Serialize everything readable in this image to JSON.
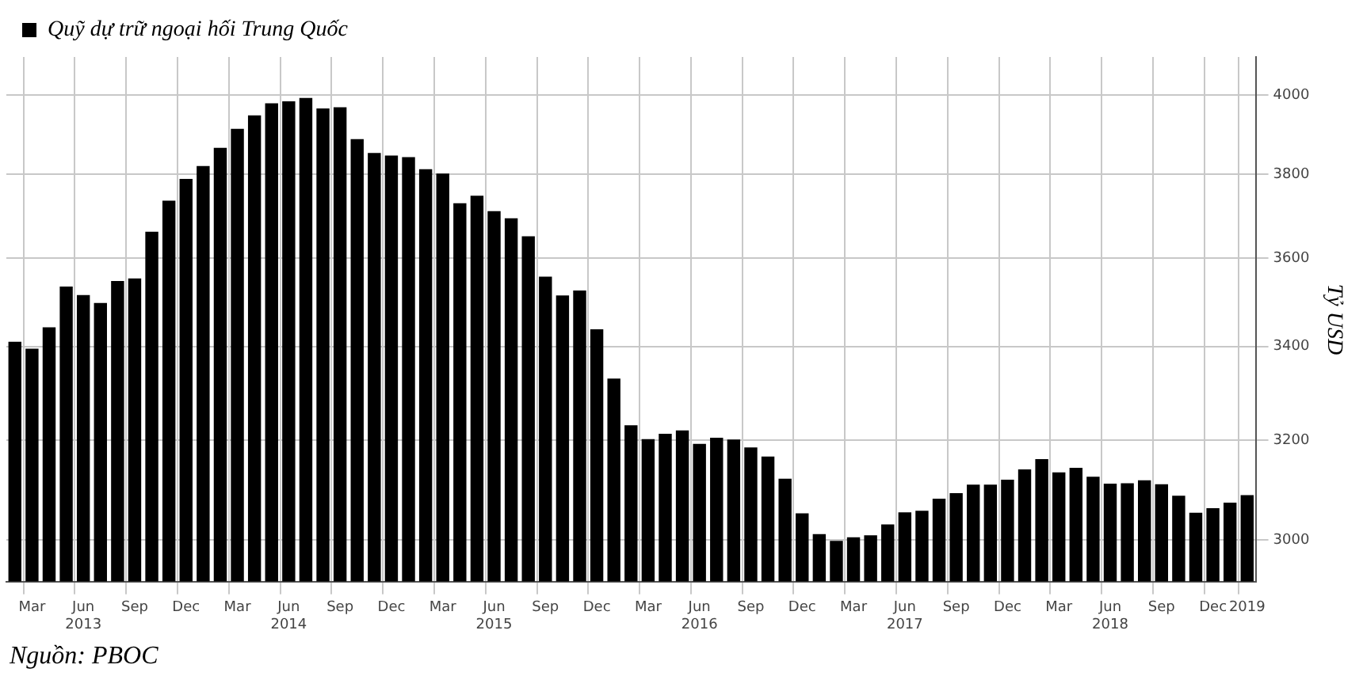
{
  "chart_data": {
    "type": "bar",
    "categories": [
      null,
      "Mar",
      null,
      null,
      "Jun\n2013",
      null,
      null,
      "Sep",
      null,
      null,
      "Dec",
      null,
      null,
      "Mar",
      null,
      null,
      "Jun\n2014",
      null,
      null,
      "Sep",
      null,
      null,
      "Dec",
      null,
      null,
      "Mar",
      null,
      null,
      "Jun\n2015",
      null,
      null,
      "Sep",
      null,
      null,
      "Dec",
      null,
      null,
      "Mar",
      null,
      null,
      "Jun\n2016",
      null,
      null,
      "Sep",
      null,
      null,
      "Dec",
      null,
      null,
      "Mar",
      null,
      null,
      "Jun\n2017",
      null,
      null,
      "Sep",
      null,
      null,
      "Dec",
      null,
      null,
      "Mar",
      null,
      null,
      "Jun\n2018",
      null,
      null,
      "Sep",
      null,
      null,
      "Dec",
      null,
      "2019"
    ],
    "series": [
      {
        "name": "Quỹ dự trữ ngoại hối Trung Quốc",
        "color": "#000000",
        "values": [
          3410,
          3395,
          3442,
          3534,
          3515,
          3497,
          3547,
          3553,
          3662,
          3736,
          3789,
          3821,
          3866,
          3914,
          3948,
          3979,
          3984,
          3993,
          3966,
          3969,
          3888,
          3853,
          3847,
          3843,
          3813,
          3802,
          3730,
          3748,
          3711,
          3694,
          3651,
          3557,
          3514,
          3525,
          3438,
          3330,
          3231,
          3202,
          3213,
          3220,
          3192,
          3205,
          3201,
          3185,
          3166,
          3121,
          3052,
          3011,
          2998,
          3005,
          3009,
          3030,
          3054,
          3057,
          3081,
          3092,
          3109,
          3109,
          3119,
          3140,
          3161,
          3134,
          3143,
          3125,
          3111,
          3112,
          3118,
          3110,
          3087,
          3053,
          3062,
          3073,
          3088
        ]
      }
    ],
    "ylabel": "Tỷ USD",
    "ylim": [
      2920,
      4100
    ],
    "yticks": [
      3000,
      3200,
      3400,
      3600,
      3800,
      4000
    ],
    "log": "y",
    "grid": true,
    "legend": "top left",
    "annotations": [
      "Nguồn: PBOC"
    ]
  }
}
